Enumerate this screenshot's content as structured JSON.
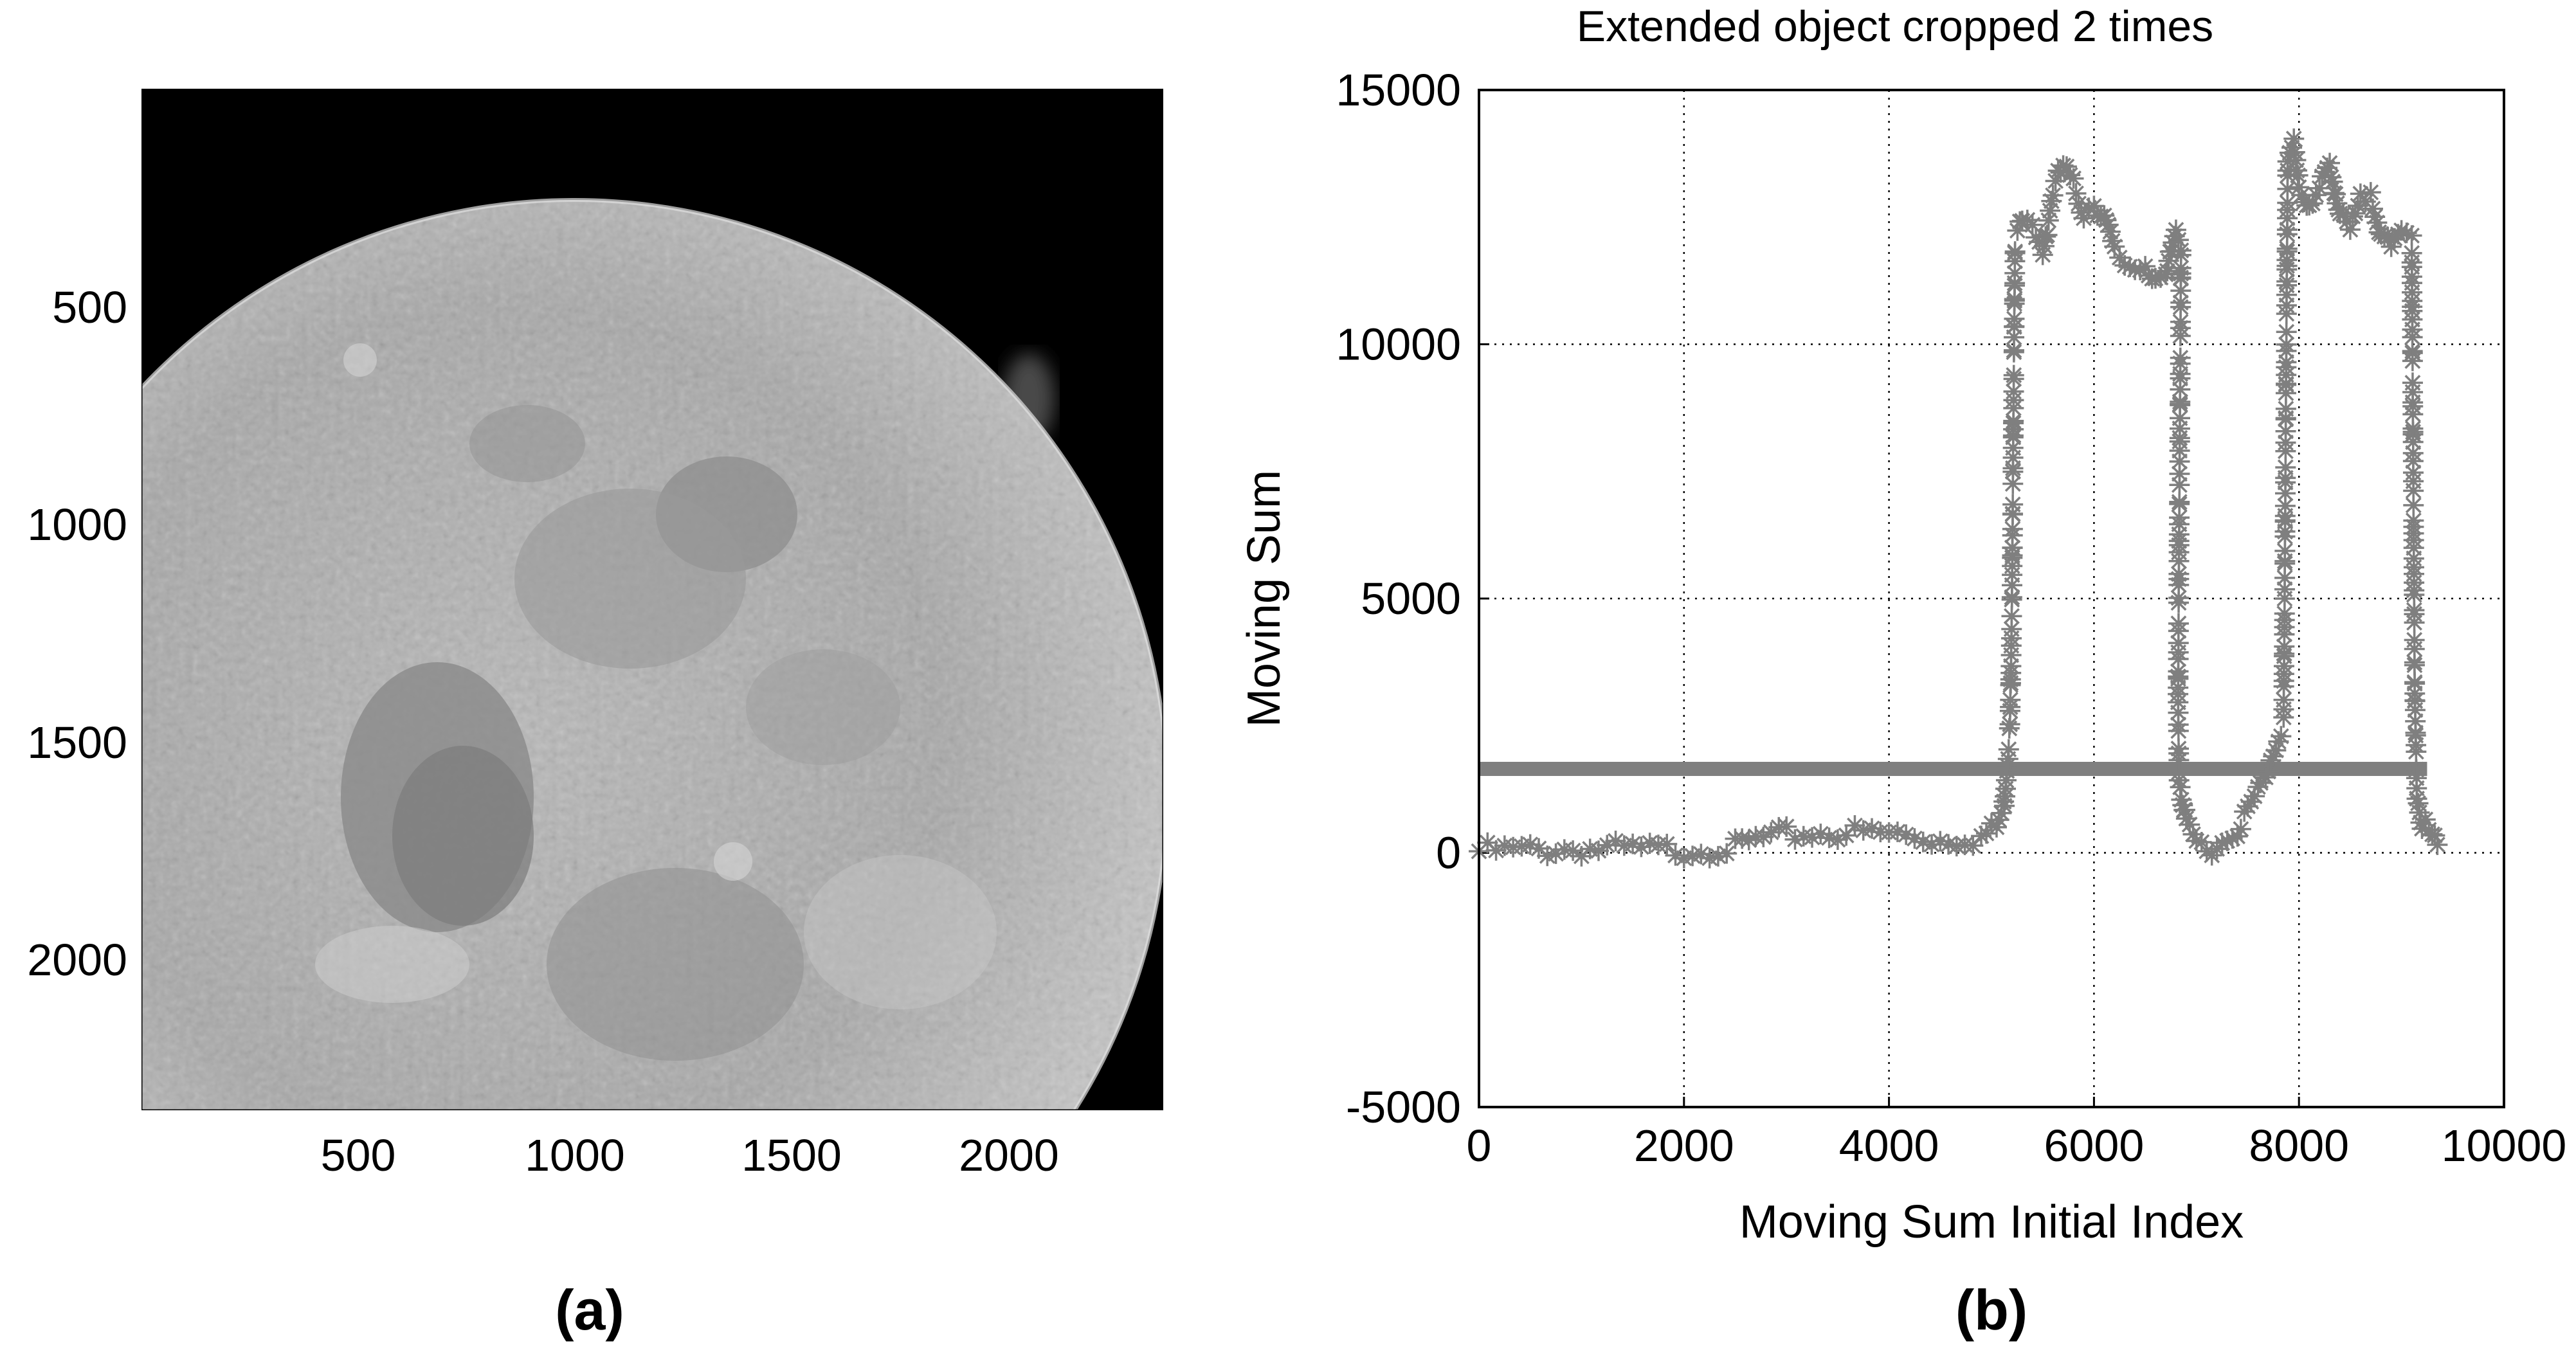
{
  "panels": {
    "a": {
      "panel_label": "(a)",
      "image": "grayscale-full-moon-photograph",
      "x_ticks": [
        "500",
        "1000",
        "1500",
        "2000"
      ],
      "y_ticks": [
        "500",
        "1000",
        "1500",
        "2000"
      ]
    },
    "b": {
      "panel_label": "(b)"
    }
  },
  "colors": {
    "series": "#7f7f7f",
    "grid": "#000000",
    "moon_bg": "#000000"
  },
  "chart_data": [
    {
      "type": "image",
      "panel": "(a)",
      "content": "photograph of the Moon",
      "x_ticks": [
        500,
        1000,
        1500,
        2000
      ],
      "y_ticks": [
        500,
        1000,
        1500,
        2000
      ],
      "xlim": [
        1,
        2350
      ],
      "ylim": [
        2350,
        1
      ],
      "y_reversed": true
    },
    {
      "type": "scatter",
      "panel": "(b)",
      "title": "Extended object cropped 2 times",
      "xlabel": "Moving Sum Initial Index",
      "ylabel": "Moving Sum",
      "xlim": [
        0,
        10000
      ],
      "ylim": [
        -5000,
        15000
      ],
      "x_ticks": [
        0,
        2000,
        4000,
        6000,
        8000,
        10000
      ],
      "y_ticks": [
        -5000,
        0,
        5000,
        10000,
        15000
      ],
      "x_tick_labels": [
        "0",
        "2000",
        "4000",
        "6000",
        "8000",
        "10000"
      ],
      "y_tick_labels": [
        "-5000",
        "0",
        "5000",
        "10000",
        "15000"
      ],
      "grid": true,
      "grid_style": "dotted",
      "marker": "asterisk",
      "threshold": 1650,
      "threshold_x": [
        0,
        9250
      ],
      "series": [
        {
          "points": [
            [
              0,
              30
            ],
            [
              500,
              50
            ],
            [
              1000,
              80
            ],
            [
              1500,
              60
            ],
            [
              2000,
              50
            ],
            [
              2500,
              100
            ],
            [
              2700,
              250
            ],
            [
              3000,
              350
            ],
            [
              3500,
              400
            ],
            [
              4000,
              380
            ],
            [
              4500,
              250
            ],
            [
              4900,
              300
            ],
            [
              5050,
              500
            ],
            [
              5120,
              900
            ],
            [
              5180,
              2500
            ],
            [
              5200,
              5000
            ],
            [
              5210,
              7500
            ],
            [
              5220,
              10000
            ],
            [
              5230,
              12000
            ],
            [
              5300,
              12400
            ],
            [
              5400,
              12200
            ],
            [
              5500,
              11800
            ],
            [
              5600,
              13000
            ],
            [
              5700,
              13500
            ],
            [
              5800,
              13100
            ],
            [
              5900,
              12600
            ],
            [
              6000,
              12800
            ],
            [
              6100,
              12500
            ],
            [
              6200,
              11800
            ],
            [
              6300,
              11600
            ],
            [
              6400,
              11500
            ],
            [
              6500,
              11600
            ],
            [
              6600,
              11300
            ],
            [
              6700,
              11200
            ],
            [
              6800,
              12300
            ],
            [
              6850,
              12000
            ],
            [
              6840,
              9000
            ],
            [
              6830,
              6000
            ],
            [
              6820,
              3000
            ],
            [
              6830,
              1500
            ],
            [
              6900,
              500
            ],
            [
              7000,
              200
            ],
            [
              7100,
              100
            ],
            [
              7200,
              150
            ],
            [
              7300,
              250
            ],
            [
              7400,
              500
            ],
            [
              7500,
              800
            ],
            [
              7600,
              1200
            ],
            [
              7700,
              1700
            ],
            [
              7800,
              2300
            ],
            [
              7850,
              2600
            ],
            [
              7860,
              5000
            ],
            [
              7870,
              8000
            ],
            [
              7880,
              11000
            ],
            [
              7890,
              13500
            ],
            [
              7950,
              14000
            ],
            [
              8000,
              13200
            ],
            [
              8100,
              12600
            ],
            [
              8200,
              13000
            ],
            [
              8300,
              13600
            ],
            [
              8400,
              12500
            ],
            [
              8500,
              12200
            ],
            [
              8600,
              12800
            ],
            [
              8700,
              13000
            ],
            [
              8800,
              12200
            ],
            [
              8900,
              11800
            ],
            [
              9000,
              12200
            ],
            [
              9100,
              12100
            ],
            [
              9110,
              9000
            ],
            [
              9120,
              6000
            ],
            [
              9130,
              3000
            ],
            [
              9150,
              1200
            ],
            [
              9200,
              600
            ],
            [
              9300,
              250
            ],
            [
              9350,
              100
            ]
          ]
        }
      ]
    }
  ]
}
